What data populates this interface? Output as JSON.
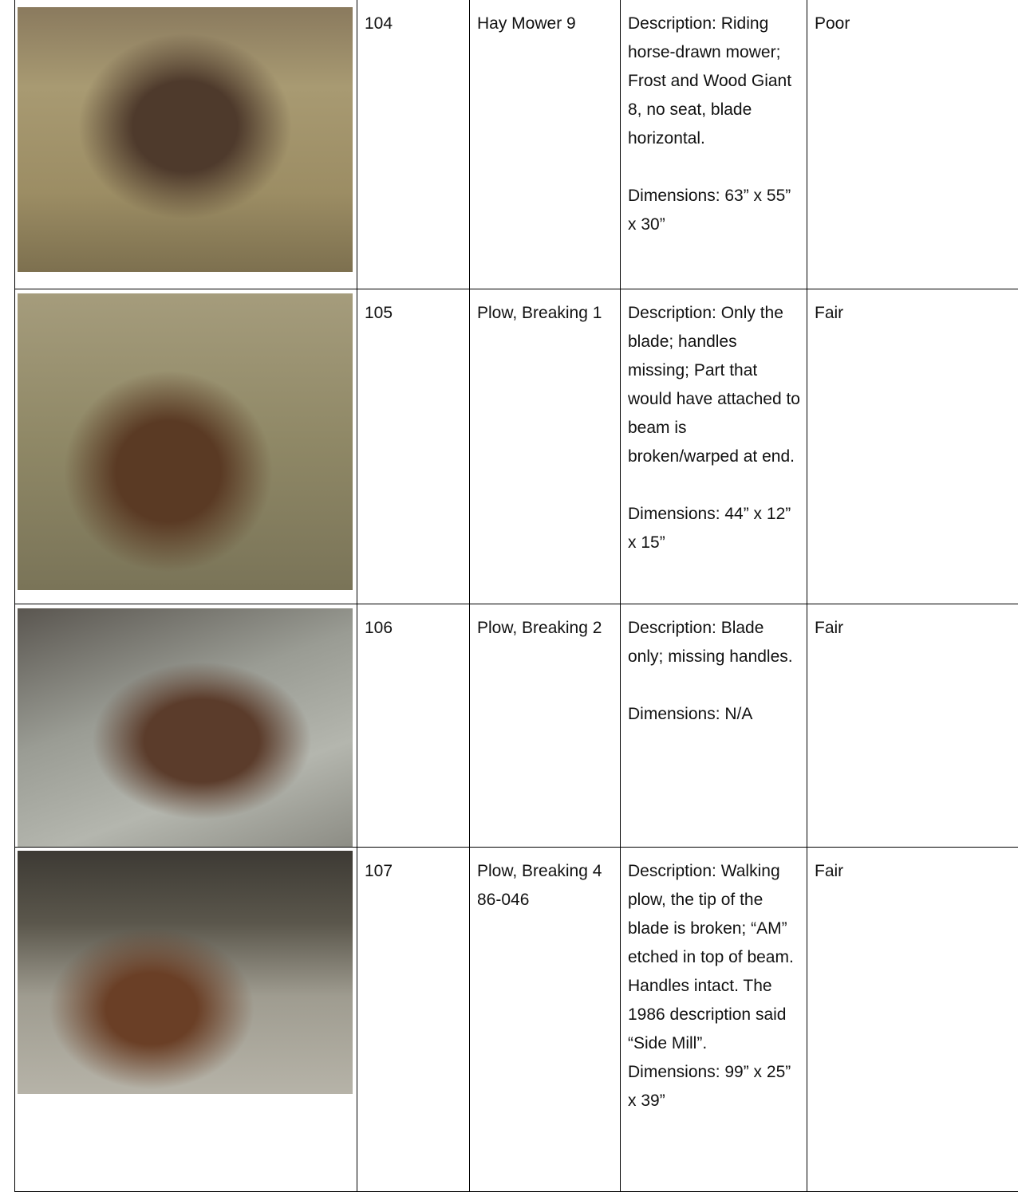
{
  "table": {
    "rows": [
      {
        "number": "104",
        "name": "Hay Mower 9",
        "description": "Description: Riding horse-drawn mower; Frost and Wood Giant 8, no seat, blade horizontal.\n\nDimensions: 63” x 55” x 30”",
        "condition": "Poor"
      },
      {
        "number": "105",
        "name": "Plow, Breaking 1",
        "description": "Description: Only the blade; handles missing; Part that would have attached to beam is broken/warped at end.\n\nDimensions: 44” x 12” x 15”",
        "condition": "Fair"
      },
      {
        "number": "106",
        "name": "Plow, Breaking 2",
        "description": "Description: Blade only; missing handles.\n\nDimensions: N/A",
        "condition": "Fair"
      },
      {
        "number": "107",
        "name": "Plow, Breaking 4 86-046",
        "description": "Description: Walking plow, the tip of the blade is broken; “AM” etched in top of beam. Handles intact. The 1986 description said “Side Mill”.\nDimensions: 99” x 25” x 39”",
        "condition": "Fair"
      }
    ]
  }
}
